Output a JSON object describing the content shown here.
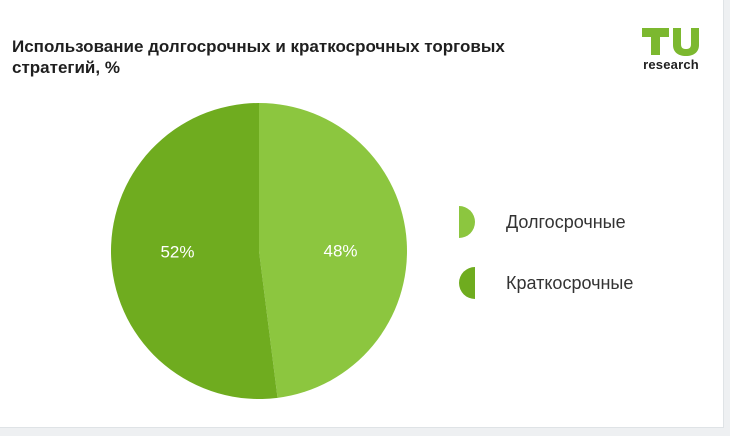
{
  "header": {
    "title": "Использование долгосрочных и краткосрочных торговых стратегий, %"
  },
  "logo": {
    "mark": "TU",
    "text": "research",
    "color": "#7cb82f"
  },
  "chart_data": {
    "type": "pie",
    "title": "Использование долгосрочных и краткосрочных торговых стратегий, %",
    "legend_position": "right",
    "slices": [
      {
        "label": "Долгосрочные",
        "value": 48,
        "display": "48%",
        "color": "#8cc63f"
      },
      {
        "label": "Краткосрочные",
        "value": 52,
        "display": "52%",
        "color": "#6fac1f"
      }
    ]
  }
}
